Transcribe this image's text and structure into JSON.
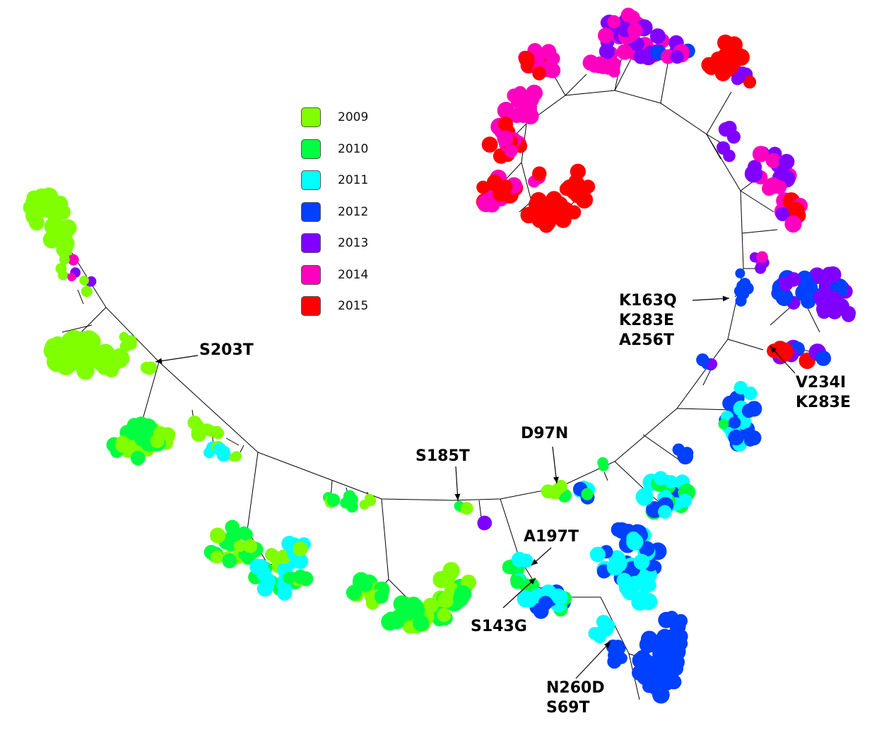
{
  "legend": [
    {
      "label": "2009",
      "color": "#80ff00"
    },
    {
      "label": "2010",
      "color": "#00ff40"
    },
    {
      "label": "2011",
      "color": "#00ffff"
    },
    {
      "label": "2012",
      "color": "#0040ff"
    },
    {
      "label": "2013",
      "color": "#8000ff"
    },
    {
      "label": "2014",
      "color": "#ff00c0"
    },
    {
      "label": "2015",
      "color": "#ff0000"
    }
  ],
  "mutations": [
    {
      "id": "s203t",
      "lines": [
        "S203T"
      ]
    },
    {
      "id": "k163q",
      "lines": [
        "K163Q",
        "K283E",
        "A256T"
      ]
    },
    {
      "id": "v234i",
      "lines": [
        "V234I",
        "K283E"
      ]
    },
    {
      "id": "s185t",
      "lines": [
        "S185T"
      ]
    },
    {
      "id": "d97n",
      "lines": [
        "D97N"
      ]
    },
    {
      "id": "a197t",
      "lines": [
        "A197T"
      ]
    },
    {
      "id": "s143g",
      "lines": [
        "S143G"
      ]
    },
    {
      "id": "n260d",
      "lines": [
        "N260D",
        "S69T"
      ]
    }
  ]
}
